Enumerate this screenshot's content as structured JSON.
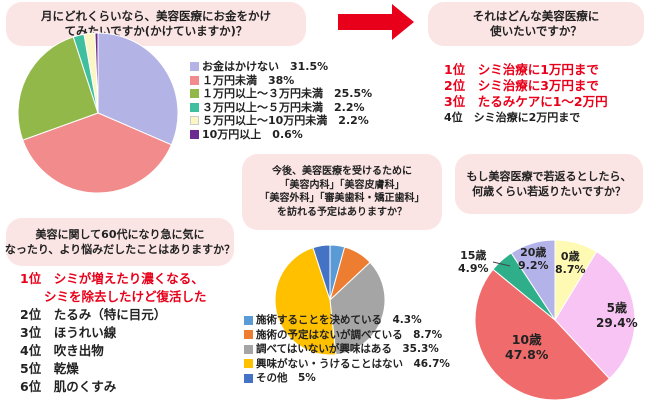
{
  "q1": {
    "lines": [
      "月にどれくらいなら、美容医療にお金をかけ",
      "てみたいですか(かけていますか)？"
    ]
  },
  "q2": {
    "lines": [
      "それはどんな美容医療に",
      "使いたいですか？"
    ]
  },
  "q3": {
    "lines": [
      "今後、美容医療を受けるために",
      "「美容内科」「美容皮膚科」",
      "「美容外科」「審美歯科・矯正歯科」",
      "を訪れる予定はありますか？"
    ]
  },
  "q4": {
    "lines": [
      "もし美容医療で若返るとしたら、",
      "何歳くらい若返りたいですか？"
    ]
  },
  "q5": {
    "lines": [
      "美容に関して60代になり急に気に",
      "なったり、より悩みだしたことはありますか？"
    ]
  },
  "ranking_uses": {
    "items": [
      "1位　シミ治療に1万円まで",
      "2位　シミ治療に3万円まで",
      "3位　たるみケアに1～2万円",
      "4位　シミ治療に2万円まで"
    ]
  },
  "ranking_concerns": {
    "first_lines": [
      "1位　シミが増えたり濃くなる、",
      "シミを除去したけど復活した"
    ],
    "items": [
      "2位　たるみ（特に目元）",
      "3位　ほうれい線",
      "4位　吹き出物",
      "5位　乾燥",
      "6位　肌のくすみ"
    ]
  },
  "chart_data": [
    {
      "type": "pie",
      "title": "月にどれくらいなら、美容医療にお金をかけてみたいですか(かけていますか)？",
      "series": [
        {
          "label": "お金はかけない",
          "value": 31.5,
          "color": "#b3b3e6"
        },
        {
          "label": "1万円未満",
          "value": 38,
          "color": "#f28b8b"
        },
        {
          "label": "1万円以上～3万円未満",
          "value": 25.5,
          "color": "#93b84a"
        },
        {
          "label": "3万円以上～5万円未満",
          "value": 2.2,
          "color": "#3fbf9e"
        },
        {
          "label": "5万円以上～10万円未満",
          "value": 2.2,
          "color": "#fbf6c4"
        },
        {
          "label": "10万円以上",
          "value": 0.6,
          "color": "#6a2a90"
        }
      ],
      "legend_text": [
        "お金はかけない　31.5%",
        "１万円未満　38%",
        "１万円以上～３万円未満　25.5%",
        "３万円以上～５万円未満　2.2%",
        "５万円以上～10万円未満　2.2%",
        "10万円以上　0.6%"
      ]
    },
    {
      "type": "pie",
      "title": "今後、美容医療を受けるために「美容内科」「美容皮膚科」「美容外科」「審美歯科・矯正歯科」を訪れる予定はありますか？",
      "series": [
        {
          "label": "施術することを決めている",
          "value": 4.3,
          "color": "#5b9bd5"
        },
        {
          "label": "施術の予定はないが調べている",
          "value": 8.7,
          "color": "#ed7d31"
        },
        {
          "label": "調べてはいないが興味はある",
          "value": 35.3,
          "color": "#a5a5a5"
        },
        {
          "label": "興味がない・うけることはない",
          "value": 46.7,
          "color": "#ffc000"
        },
        {
          "label": "その他",
          "value": 5,
          "color": "#4472c4"
        }
      ],
      "legend_text": [
        "施術することを決めている　4.3%",
        "施術の予定はないが調べている　8.7%",
        "調べてはいないが興味はある　35.3%",
        "興味がない・うけることはない　46.7%",
        "その他　5%"
      ]
    },
    {
      "type": "pie",
      "title": "もし美容医療で若返るとしたら、何歳くらい若返りたいですか？",
      "series": [
        {
          "label": "0歳",
          "value": 8.7,
          "color": "#fffab3",
          "pct": "8.7%"
        },
        {
          "label": "5歳",
          "value": 29.4,
          "color": "#f8c4f4",
          "pct": "29.4%"
        },
        {
          "label": "10歳",
          "value": 47.8,
          "color": "#f06b6b",
          "pct": "47.8%"
        },
        {
          "label": "15歳",
          "value": 4.9,
          "color": "#2fae8a",
          "pct": "4.9%"
        },
        {
          "label": "20歳",
          "value": 9.2,
          "color": "#b3b3ea",
          "pct": "9.2%"
        }
      ]
    }
  ],
  "colors": {
    "accent_red": "#e8001a",
    "bubble_pink": "#fbe4e4",
    "arrow_red": "#e8001a"
  }
}
